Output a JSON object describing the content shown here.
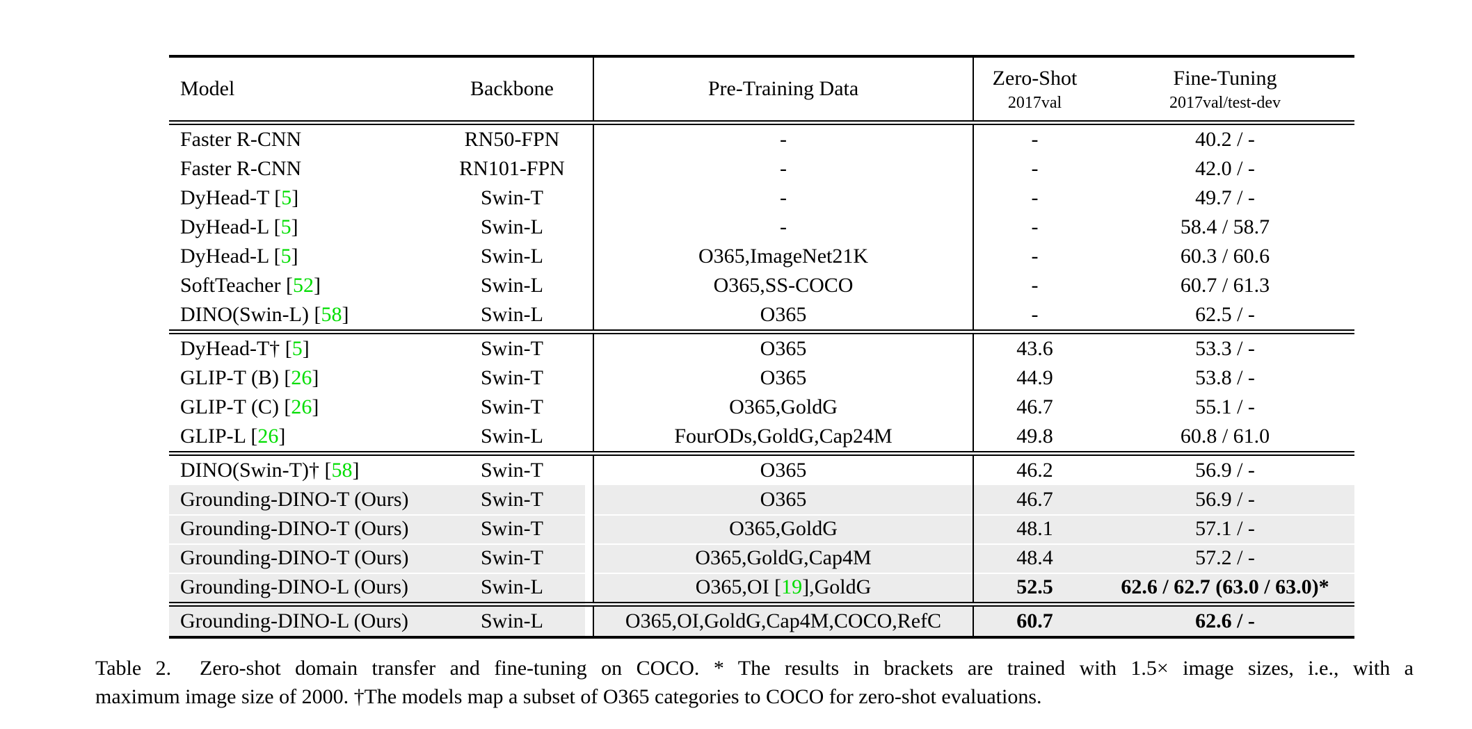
{
  "colors": {
    "cite_green": "#00dd00",
    "row_highlight": "#ececec",
    "text": "#000000",
    "background": "#ffffff"
  },
  "table": {
    "header": {
      "model": "Model",
      "backbone": "Backbone",
      "pretrain": "Pre-Training Data",
      "zeroshot_line1": "Zero-Shot",
      "zeroshot_line2": "2017val",
      "finetune_line1": "Fine-Tuning",
      "finetune_line2": "2017val/test-dev"
    },
    "groups": [
      {
        "rows": [
          {
            "m1": "Faster R-CNN",
            "backbone": "RN50-FPN",
            "p1": "-",
            "zs": "-",
            "ft": "40.2 / -"
          },
          {
            "m1": "Faster R-CNN",
            "backbone": "RN101-FPN",
            "p1": "-",
            "zs": "-",
            "ft": "42.0 / -"
          },
          {
            "m1": "DyHead-T [",
            "cite": "5",
            "m2": "]",
            "backbone": "Swin-T",
            "p1": "-",
            "zs": "-",
            "ft": "49.7 / -"
          },
          {
            "m1": "DyHead-L [",
            "cite": "5",
            "m2": "]",
            "backbone": "Swin-L",
            "p1": "-",
            "zs": "-",
            "ft": "58.4 / 58.7"
          },
          {
            "m1": "DyHead-L [",
            "cite": "5",
            "m2": "]",
            "backbone": "Swin-L",
            "p1": "O365,ImageNet21K",
            "zs": "-",
            "ft": "60.3 / 60.6"
          },
          {
            "m1": "SoftTeacher [",
            "cite": "52",
            "m2": "]",
            "backbone": "Swin-L",
            "p1": "O365,SS-COCO",
            "zs": "-",
            "ft": "60.7 / 61.3"
          },
          {
            "m1": "DINO(Swin-L) [",
            "cite": "58",
            "m2": "]",
            "backbone": "Swin-L",
            "p1": "O365",
            "zs": "-",
            "ft": "62.5 / -"
          }
        ]
      },
      {
        "rows": [
          {
            "m1": "DyHead-T† [",
            "cite": "5",
            "m2": "]",
            "backbone": "Swin-T",
            "p1": "O365",
            "zs": "43.6",
            "ft": "53.3 / -"
          },
          {
            "m1": "GLIP-T (B) [",
            "cite": "26",
            "m2": "]",
            "backbone": "Swin-T",
            "p1": "O365",
            "zs": "44.9",
            "ft": "53.8 / -"
          },
          {
            "m1": "GLIP-T (C) [",
            "cite": "26",
            "m2": "]",
            "backbone": "Swin-T",
            "p1": "O365,GoldG",
            "zs": "46.7",
            "ft": "55.1 / -"
          },
          {
            "m1": "GLIP-L [",
            "cite": "26",
            "m2": "]",
            "backbone": "Swin-L",
            "p1": "FourODs,GoldG,Cap24M",
            "zs": "49.8",
            "ft": "60.8 / 61.0"
          }
        ]
      },
      {
        "rows": [
          {
            "m1": "DINO(Swin-T)† [",
            "cite": "58",
            "m2": "]",
            "backbone": "Swin-T",
            "p1": "O365",
            "zs": "46.2",
            "ft": "56.9 / -"
          },
          {
            "m1": "Grounding-DINO-T (Ours)",
            "backbone": "Swin-T",
            "p1": "O365",
            "zs": "46.7",
            "ft": "56.9 / -",
            "hl": true
          },
          {
            "m1": "Grounding-DINO-T (Ours)",
            "backbone": "Swin-T",
            "p1": "O365,GoldG",
            "zs": "48.1",
            "ft": "57.1 / -",
            "hl": true
          },
          {
            "m1": "Grounding-DINO-T (Ours)",
            "backbone": "Swin-T",
            "p1": "O365,GoldG,Cap4M",
            "zs": "48.4",
            "ft": "57.2 / -",
            "hl": true
          },
          {
            "m1": "Grounding-DINO-L (Ours)",
            "backbone": "Swin-L",
            "p1": "O365,OI [",
            "pcite": "19",
            "p2": "],GoldG",
            "zs": "52.5",
            "ft": "62.6 / 62.7 (63.0 / 63.0)*",
            "hl": true,
            "bold": true
          }
        ]
      },
      {
        "rows": [
          {
            "m1": "Grounding-DINO-L (Ours)",
            "backbone": "Swin-L",
            "p1": "O365,OI,GoldG,Cap4M,COCO,RefC",
            "zs": "60.7",
            "ft": "62.6 / -",
            "hl": true,
            "bold": true
          }
        ]
      }
    ]
  },
  "caption": {
    "line1": "Table 2.  Zero-shot domain transfer and fine-tuning on COCO. * The results in brackets are trained with 1.5× image sizes, i.e., with a",
    "line2": "maximum image size of 2000. †The models map a subset of O365 categories to COCO for zero-shot evaluations."
  }
}
